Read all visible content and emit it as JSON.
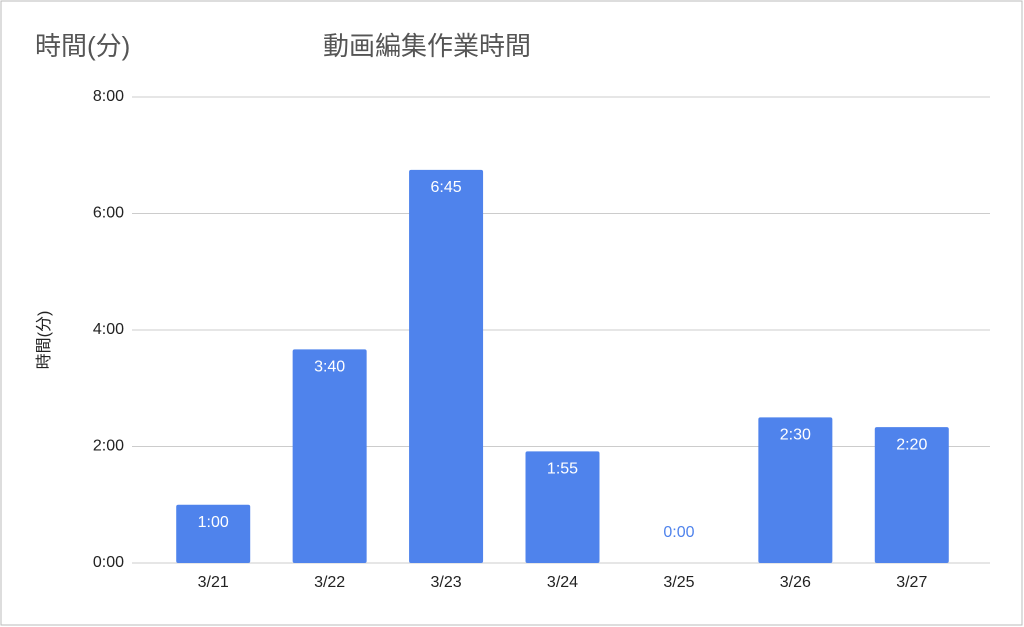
{
  "chart_data": {
    "type": "bar",
    "title": "動画編集作業時間",
    "annotations": [
      "時間(分)"
    ],
    "ylabel": "時間(分)",
    "categories": [
      "3/21",
      "3/22",
      "3/23",
      "3/24",
      "3/25",
      "3/26",
      "3/27"
    ],
    "values": [
      1,
      3.666667,
      6.75,
      1.916667,
      0,
      2.5,
      2.333333
    ],
    "value_labels": [
      "1:00",
      "3:40",
      "6:45",
      "1:55",
      "0:00",
      "2:30",
      "2:20"
    ],
    "color": "#4f83ec",
    "ylim": [
      0,
      8
    ],
    "yticks": [
      {
        "value": 0,
        "label": "0:00"
      },
      {
        "value": 2,
        "label": "2:00"
      },
      {
        "value": 4,
        "label": "4:00"
      },
      {
        "value": 6,
        "label": "6:00"
      },
      {
        "value": 8,
        "label": "8:00"
      }
    ],
    "grid": true
  }
}
